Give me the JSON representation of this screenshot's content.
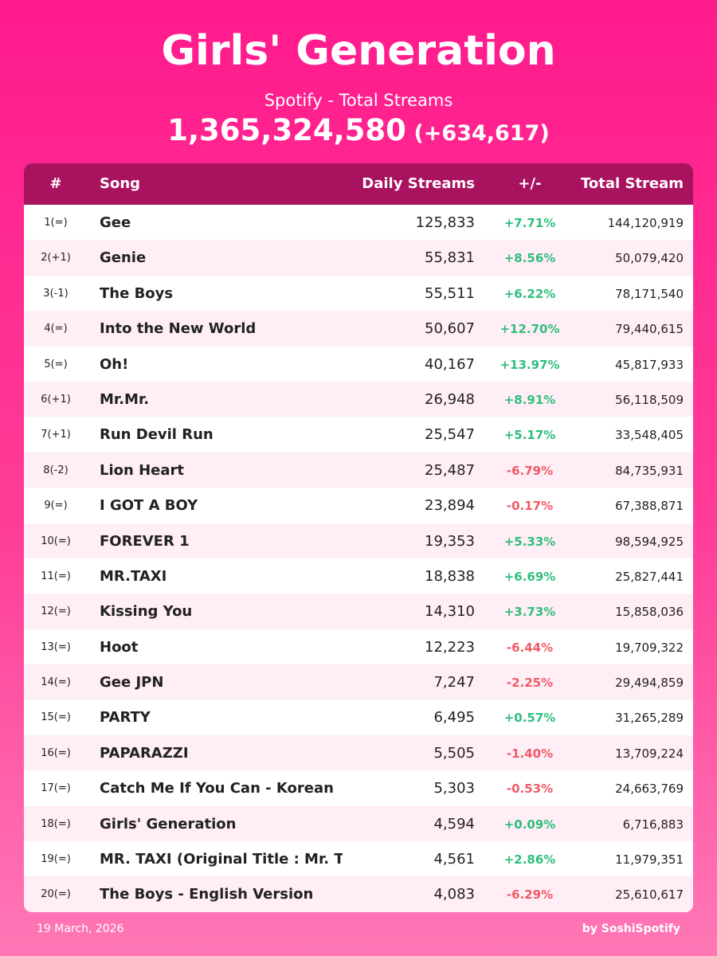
{
  "header": {
    "title": "Girls' Generation",
    "subtitle": "Spotify - Total Streams",
    "total_value": "1,365,324,580",
    "total_change": "(+634,617)"
  },
  "colors": {
    "background_top": "#ff1a8c",
    "header_row": "#a8125e",
    "alt_row": "#ffeef6",
    "positive": "#2fbf7c",
    "negative": "#ee5b66"
  },
  "table": {
    "columns": [
      "#",
      "Song",
      "Daily Streams",
      "+/-",
      "Total Stream"
    ],
    "rows": [
      {
        "rank": "1(=)",
        "song": "Gee",
        "daily": "125,833",
        "change": "+7.71%",
        "total": "144,120,919"
      },
      {
        "rank": "2(+1)",
        "song": "Genie",
        "daily": "55,831",
        "change": "+8.56%",
        "total": "50,079,420"
      },
      {
        "rank": "3(-1)",
        "song": "The Boys",
        "daily": "55,511",
        "change": "+6.22%",
        "total": "78,171,540"
      },
      {
        "rank": "4(=)",
        "song": "Into the New World",
        "daily": "50,607",
        "change": "+12.70%",
        "total": "79,440,615"
      },
      {
        "rank": "5(=)",
        "song": "Oh!",
        "daily": "40,167",
        "change": "+13.97%",
        "total": "45,817,933"
      },
      {
        "rank": "6(+1)",
        "song": "Mr.Mr.",
        "daily": "26,948",
        "change": "+8.91%",
        "total": "56,118,509"
      },
      {
        "rank": "7(+1)",
        "song": "Run Devil Run",
        "daily": "25,547",
        "change": "+5.17%",
        "total": "33,548,405"
      },
      {
        "rank": "8(-2)",
        "song": "Lion Heart",
        "daily": "25,487",
        "change": "-6.79%",
        "total": "84,735,931"
      },
      {
        "rank": "9(=)",
        "song": "I GOT A BOY",
        "daily": "23,894",
        "change": "-0.17%",
        "total": "67,388,871"
      },
      {
        "rank": "10(=)",
        "song": "FOREVER 1",
        "daily": "19,353",
        "change": "+5.33%",
        "total": "98,594,925"
      },
      {
        "rank": "11(=)",
        "song": "MR.TAXI",
        "daily": "18,838",
        "change": "+6.69%",
        "total": "25,827,441"
      },
      {
        "rank": "12(=)",
        "song": "Kissing You",
        "daily": "14,310",
        "change": "+3.73%",
        "total": "15,858,036"
      },
      {
        "rank": "13(=)",
        "song": "Hoot",
        "daily": "12,223",
        "change": "-6.44%",
        "total": "19,709,322"
      },
      {
        "rank": "14(=)",
        "song": "Gee JPN",
        "daily": "7,247",
        "change": "-2.25%",
        "total": "29,494,859"
      },
      {
        "rank": "15(=)",
        "song": "PARTY",
        "daily": "6,495",
        "change": "+0.57%",
        "total": "31,265,289"
      },
      {
        "rank": "16(=)",
        "song": "PAPARAZZI",
        "daily": "5,505",
        "change": "-1.40%",
        "total": "13,709,224"
      },
      {
        "rank": "17(=)",
        "song": "Catch Me If You Can - Korean",
        "daily": "5,303",
        "change": "-0.53%",
        "total": "24,663,769"
      },
      {
        "rank": "18(=)",
        "song": "Girls' Generation",
        "daily": "4,594",
        "change": "+0.09%",
        "total": "6,716,883"
      },
      {
        "rank": "19(=)",
        "song": "MR. TAXI (Original Title : Mr. Taxi",
        "daily": "4,561",
        "change": "+2.86%",
        "total": "11,979,351"
      },
      {
        "rank": "20(=)",
        "song": "The Boys - English Version",
        "daily": "4,083",
        "change": "-6.29%",
        "total": "25,610,617"
      }
    ]
  },
  "footer": {
    "date": "19 March, 2026",
    "credit": "by SoshiSpotify"
  }
}
